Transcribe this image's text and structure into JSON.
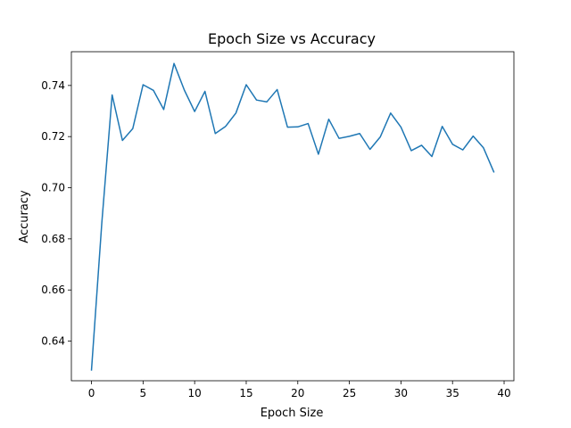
{
  "chart_data": {
    "type": "line",
    "title": "Epoch Size vs Accuracy",
    "xlabel": "Epoch Size",
    "ylabel": "Accuracy",
    "xlim": [
      -1.95,
      40.95
    ],
    "ylim": [
      0.6245,
      0.7532
    ],
    "xticks": [
      0,
      5,
      10,
      15,
      20,
      25,
      30,
      35,
      40
    ],
    "xtick_labels": [
      "0",
      "5",
      "10",
      "15",
      "20",
      "25",
      "30",
      "35",
      "40"
    ],
    "yticks": [
      0.64,
      0.66,
      0.68,
      0.7,
      0.72,
      0.74
    ],
    "ytick_labels": [
      "0.64",
      "0.66",
      "0.68",
      "0.70",
      "0.72",
      "0.74"
    ],
    "grid": false,
    "line_color": "#1f77b4",
    "series": [
      {
        "x": [
          0,
          1,
          2,
          3,
          4,
          5,
          6,
          7,
          8,
          9,
          10,
          11,
          12,
          13,
          14,
          15,
          16,
          17,
          18,
          19,
          20,
          21,
          22,
          23,
          24,
          25,
          26,
          27,
          28,
          29,
          30,
          31,
          32,
          33,
          34,
          35,
          36,
          37,
          38,
          39
        ],
        "values": [
          0.6287,
          0.6862,
          0.7363,
          0.7185,
          0.7231,
          0.7403,
          0.7381,
          0.7306,
          0.7486,
          0.7382,
          0.7298,
          0.7377,
          0.7212,
          0.724,
          0.7292,
          0.7403,
          0.7343,
          0.7336,
          0.7384,
          0.7237,
          0.7238,
          0.7251,
          0.7131,
          0.7268,
          0.7193,
          0.7201,
          0.7212,
          0.715,
          0.7199,
          0.7292,
          0.7237,
          0.7145,
          0.7166,
          0.7122,
          0.724,
          0.717,
          0.7148,
          0.7202,
          0.7156,
          0.7062
        ]
      }
    ]
  }
}
